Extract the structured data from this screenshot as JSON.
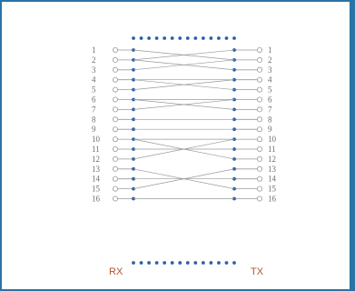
{
  "connector": {
    "left_pins": [
      "1",
      "2",
      "3",
      "4",
      "5",
      "6",
      "7",
      "8",
      "9",
      "10",
      "11",
      "12",
      "13",
      "14",
      "15",
      "16"
    ],
    "right_pins": [
      "1",
      "2",
      "3",
      "4",
      "5",
      "6",
      "7",
      "8",
      "9",
      "10",
      "11",
      "12",
      "13",
      "14",
      "15",
      "16"
    ],
    "left_label": "RX",
    "right_label": "TX",
    "crossed_pairs": [
      [
        1,
        2
      ],
      [
        2,
        3
      ],
      [
        4,
        5
      ],
      [
        6,
        7
      ],
      [
        10,
        12
      ],
      [
        13,
        15
      ]
    ],
    "straight_pins": [
      4,
      6,
      8,
      9,
      10,
      11,
      14,
      16
    ]
  },
  "colors": {
    "frame": "#2a74a4",
    "dots": "#2f5fa8",
    "lines": "#9a9a9a",
    "pin_text": "#6f6f6f",
    "side_label": "#b5532e"
  }
}
